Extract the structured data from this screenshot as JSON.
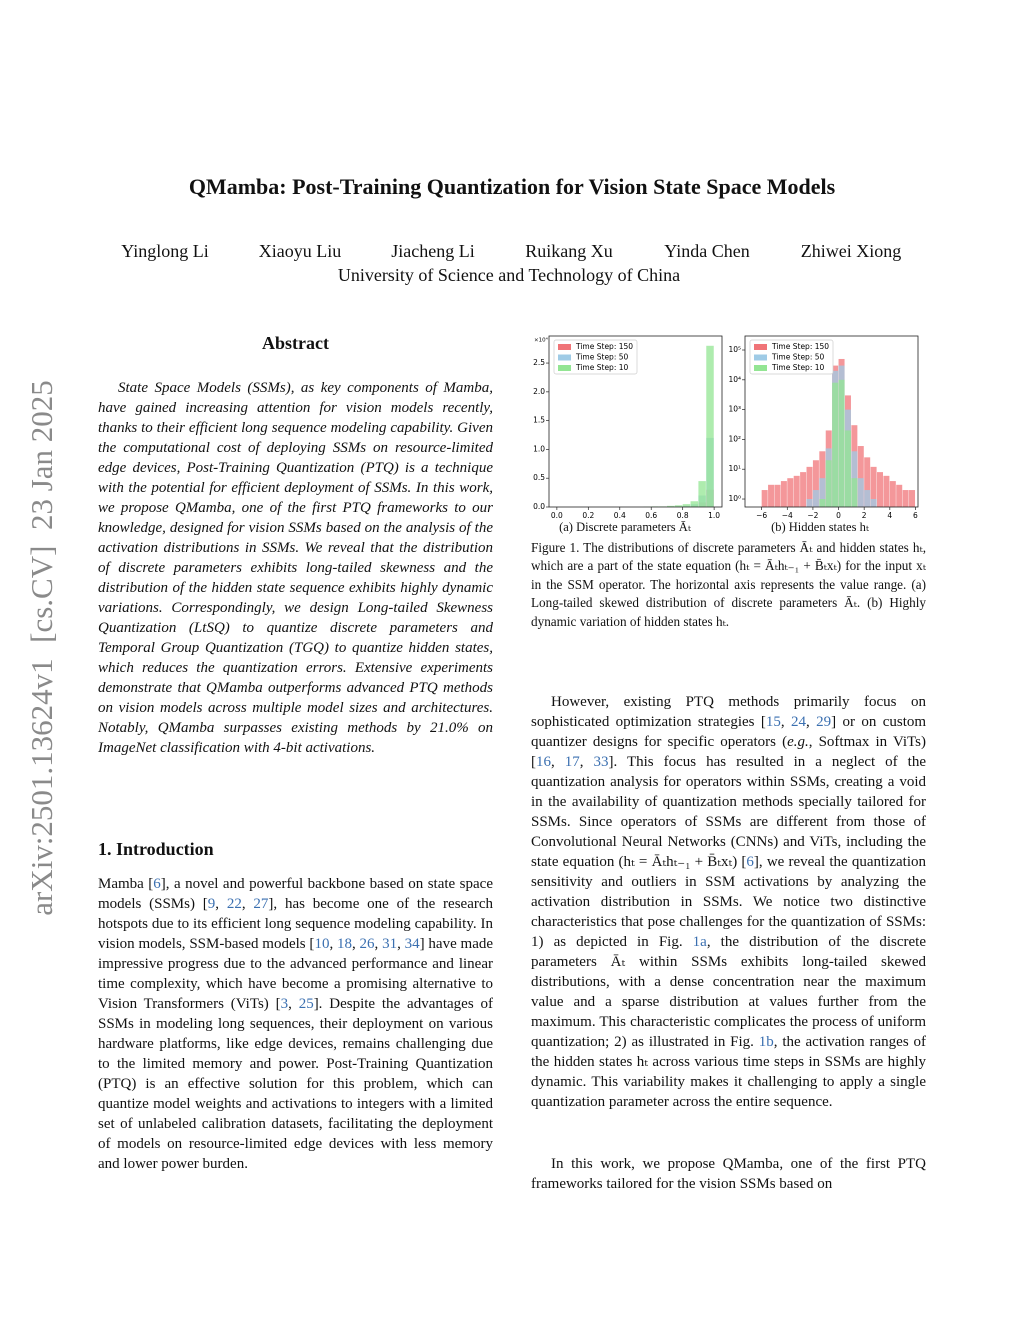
{
  "arxiv_stamp": "arXiv:2501.13624v1  [cs.CV]  23 Jan 2025",
  "header": {
    "title": "QMamba: Post-Training Quantization for Vision State Space Models",
    "authors": [
      "Yinglong Li",
      "Xiaoyu Liu",
      "Jiacheng Li",
      "Ruikang Xu",
      "Yinda Chen",
      "Zhiwei Xiong"
    ],
    "affiliation": "University of Science and Technology of China"
  },
  "abstract": {
    "heading": "Abstract",
    "text": "State Space Models (SSMs), as key components of Mamba, have gained increasing attention for vision models recently, thanks to their efficient long sequence modeling capability. Given the computational cost of deploying SSMs on resource-limited edge devices, Post-Training Quantization (PTQ) is a technique with the potential for efficient deployment of SSMs. In this work, we propose QMamba, one of the first PTQ frameworks to our knowledge, designed for vision SSMs based on the analysis of the activation distributions in SSMs. We reveal that the distribution of discrete parameters exhibits long-tailed skewness and the distribution of the hidden state sequence exhibits highly dynamic variations. Correspondingly, we design Long-tailed Skewness Quantization (LtSQ) to quantize discrete parameters and Temporal Group Quantization (TGQ) to quantize hidden states, which reduces the quantization errors. Extensive experiments demonstrate that QMamba outperforms advanced PTQ methods on vision models across multiple model sizes and architectures. Notably, QMamba surpasses existing methods by 21.0% on ImageNet classification with 4-bit activations."
  },
  "introduction": {
    "heading": "1. Introduction",
    "paragraphs": [
      {
        "runs": [
          "Mamba [",
          {
            "cite": "6"
          },
          "], a novel and powerful backbone based on state space models (SSMs) [",
          {
            "cite": "9"
          },
          ", ",
          {
            "cite": "22"
          },
          ", ",
          {
            "cite": "27"
          },
          "], has become one of the research hotspots due to its efficient long sequence modeling capability. In vision models, SSM-based models [",
          {
            "cite": "10"
          },
          ", ",
          {
            "cite": "18"
          },
          ", ",
          {
            "cite": "26"
          },
          ", ",
          {
            "cite": "31"
          },
          ", ",
          {
            "cite": "34"
          },
          "] have made impressive progress due to the advanced performance and linear time complexity, which have become a promising alternative to Vision Transformers (ViTs) [",
          {
            "cite": "3"
          },
          ", ",
          {
            "cite": "25"
          },
          "]. Despite the advantages of SSMs in modeling long sequences, their deployment on various hardware platforms, like edge devices, remains challenging due to the limited memory and power. Post-Training Quantization (PTQ) is an effective solution for this problem, which can quantize model weights and activations to integers with a limited set of unlabeled calibration datasets, facilitating the deployment of models on resource-limited edge devices with less memory and lower power burden."
        ]
      }
    ]
  },
  "figure": {
    "charts": [
      {
        "type": "histogram",
        "subcaption": "(a) Discrete parameters Āₜ",
        "offset_label": "×10⁴",
        "legend": "upper left",
        "bins": [
          0,
          0.05,
          0.1,
          0.15,
          0.2,
          0.25,
          0.3,
          0.35,
          0.4,
          0.45,
          0.5,
          0.55,
          0.6,
          0.65,
          0.7,
          0.75,
          0.8,
          0.85,
          0.9,
          0.95,
          1.0
        ],
        "series": [
          {
            "name": "Time Step: 150",
            "color": "#f07478",
            "values": [
              0,
              0,
              0,
              0,
              0,
              0,
              0,
              0,
              0,
              0,
              0,
              0,
              0,
              0,
              0,
              0.005,
              0.01,
              0.02,
              0.08,
              0.3
            ]
          },
          {
            "name": "Time Step: 50",
            "color": "#9fcbe6",
            "values": [
              0,
              0,
              0,
              0,
              0,
              0,
              0,
              0,
              0,
              0,
              0,
              0,
              0,
              0,
              0.005,
              0.01,
              0.02,
              0.05,
              0.2,
              1.2
            ]
          },
          {
            "name": "Time Step: 10",
            "color": "#93e593",
            "values": [
              0,
              0,
              0,
              0,
              0,
              0,
              0,
              0,
              0,
              0,
              0,
              0.005,
              0.01,
              0.01,
              0.02,
              0.03,
              0.05,
              0.1,
              0.45,
              2.8
            ]
          }
        ],
        "xlim": [
          -0.05,
          1.05
        ],
        "ylim": [
          0,
          2.97
        ],
        "xticks": [
          {
            "value": 0,
            "label": "0.0"
          },
          0.2,
          0.4,
          0.6,
          0.8,
          {
            "value": 1,
            "label": "1.0"
          }
        ],
        "yticks": [
          {
            "value": 0,
            "label": "0.0"
          },
          0.5,
          {
            "value": 1,
            "label": "1.0"
          },
          1.5,
          {
            "value": 2,
            "label": "2.0"
          },
          2.5
        ]
      },
      {
        "type": "histogram",
        "subcaption": "(b) Hidden states hₜ",
        "log_y": true,
        "legend": "upper left",
        "bins": [
          -6,
          -5.5,
          -5,
          -4.5,
          -4,
          -3.5,
          -3,
          -2.5,
          -2,
          -1.5,
          -1,
          -0.5,
          0,
          0.5,
          1,
          1.5,
          2,
          2.5,
          3,
          3.5,
          4,
          4.5,
          5,
          5.5,
          6
        ],
        "series": [
          {
            "name": "Time Step: 150",
            "color": "#f07478",
            "values": [
              2,
              3,
              3,
              4,
              5,
              6,
              8,
              12,
              20,
              40,
              200,
              30000,
              50000,
              3000,
              300,
              60,
              25,
              12,
              8,
              6,
              4,
              3,
              2,
              2
            ]
          },
          {
            "name": "Time Step: 50",
            "color": "#9fcbe6",
            "values": [
              0,
              0,
              0,
              0,
              0,
              0,
              0,
              1,
              2,
              5,
              50,
              20000,
              30000,
              1000,
              40,
              5,
              2,
              1,
              0,
              0,
              0,
              0,
              0,
              0
            ]
          },
          {
            "name": "Time Step: 10",
            "color": "#93e593",
            "values": [
              0,
              0,
              0,
              0,
              0,
              0,
              0,
              0,
              0,
              1,
              20,
              8000,
              10000,
              200,
              5,
              0,
              0,
              0,
              0,
              0,
              0,
              0,
              0,
              0
            ]
          }
        ],
        "xlim": [
          -7.3,
          6.2
        ],
        "ylim": [
          0.54,
          295000
        ],
        "xticks": [
          {
            "value": -6,
            "label": "−6"
          },
          {
            "value": -4,
            "label": "−4"
          },
          {
            "value": -2,
            "label": "−2"
          },
          0,
          2,
          4,
          6
        ],
        "yticks": [
          {
            "value": 1,
            "label": "10⁰"
          },
          {
            "value": 10,
            "label": "10¹"
          },
          {
            "value": 100,
            "label": "10²"
          },
          {
            "value": 1000,
            "label": "10³"
          },
          {
            "value": 10000,
            "label": "10⁴"
          },
          {
            "value": 100000,
            "label": "10⁵"
          }
        ]
      }
    ],
    "caption": "Figure 1. The distributions of discrete parameters Āₜ and hidden states hₜ, which are a part of the state equation (hₜ = Āₜhₜ₋₁ + B̄ₜxₜ) for the input xₜ in the SSM operator. The horizontal axis represents the value range. (a) Long-tailed skewed distribution of discrete parameters Āₜ. (b) Highly dynamic variation of hidden states hₜ."
  },
  "right_column": {
    "paragraphs": [
      {
        "runs": [
          "However, existing PTQ methods primarily focus on sophisticated optimization strategies [",
          {
            "cite": "15"
          },
          ", ",
          {
            "cite": "24"
          },
          ", ",
          {
            "cite": "29"
          },
          "] or on custom quantizer designs for specific operators (",
          {
            "em": "e.g."
          },
          ", Softmax in ViTs) [",
          {
            "cite": "16"
          },
          ", ",
          {
            "cite": "17"
          },
          ", ",
          {
            "cite": "33"
          },
          "]. This focus has resulted in a neglect of the quantization analysis for operators within SSMs, creating a void in the availability of quantization methods specially tailored for SSMs. Since operators of SSMs are different from those of Convolutional Neural Networks (CNNs) and ViTs, including the state equation (hₜ = Āₜhₜ₋₁ + B̄ₜxₜ) [",
          {
            "cite": "6"
          },
          "], we reveal the quantization sensitivity and outliers in SSM activations by analyzing the activation distribution in SSMs. We notice two distinctive characteristics that pose challenges for the quantization of SSMs: 1) as depicted in Fig. ",
          {
            "cite": "1a"
          },
          ", the distribution of the discrete parameters Āₜ within SSMs exhibits long-tailed skewed distributions, with a dense concentration near the maximum value and a sparse distribution at values further from the maximum. This characteristic complicates the process of uniform quantization; 2) as illustrated in Fig. ",
          {
            "cite": "1b"
          },
          ", the activation ranges of the hidden states hₜ across various time steps in SSMs are highly dynamic. This variability makes it challenging to apply a single quantization parameter across the entire sequence."
        ]
      },
      {
        "runs": [
          "In this work, we propose QMamba, one of the first PTQ frameworks tailored for the vision SSMs based on"
        ]
      }
    ]
  }
}
